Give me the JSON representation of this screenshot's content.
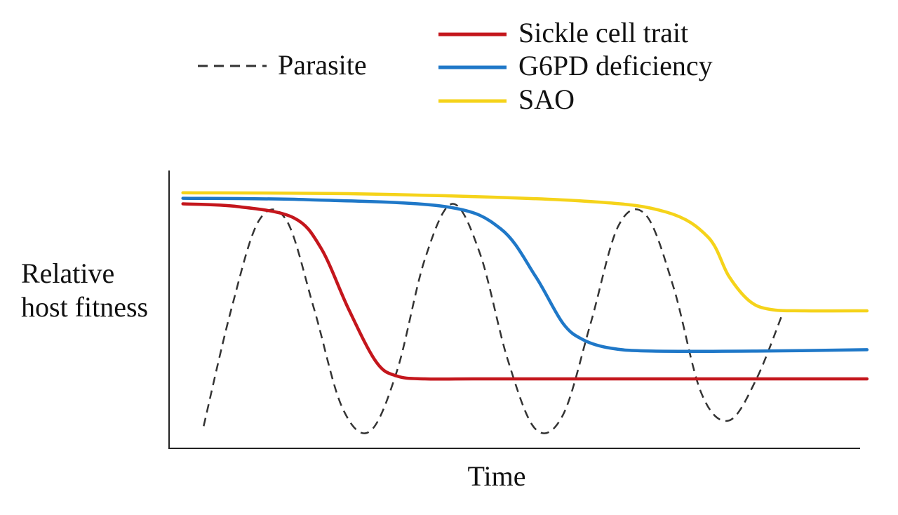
{
  "chart_data": {
    "type": "line",
    "title": "",
    "xlabel": "Time",
    "ylabel": [
      "Relative",
      "host fitness"
    ],
    "xlim": [
      0,
      100
    ],
    "ylim": [
      0,
      100
    ],
    "legend_position": "top",
    "legend": {
      "parasite": "Parasite",
      "sickle": "Sickle cell trait",
      "g6pd": "G6PD deficiency",
      "sao": "SAO"
    },
    "series": [
      {
        "key": "sickle",
        "name": "Sickle cell trait",
        "color": "#c4161c",
        "style": "solid",
        "x": [
          2,
          10,
          18,
          22,
          26,
          30,
          33,
          37,
          44,
          60,
          80,
          101
        ],
        "y": [
          88,
          87,
          83,
          72,
          50,
          31,
          26,
          25,
          25,
          25,
          25,
          25
        ]
      },
      {
        "key": "g6pd",
        "name": "G6PD deficiency",
        "color": "#1f78c8",
        "style": "solid",
        "x": [
          2,
          20,
          40,
          48,
          53,
          57,
          60,
          64,
          70,
          85,
          101
        ],
        "y": [
          90,
          89.5,
          87,
          79,
          62,
          45,
          39,
          36,
          35,
          35,
          35.5
        ]
      },
      {
        "key": "sao",
        "name": "SAO",
        "color": "#f5d31a",
        "style": "solid",
        "x": [
          2,
          30,
          60,
          72,
          78,
          81,
          84,
          87,
          92,
          101
        ],
        "y": [
          92,
          91.5,
          89,
          85,
          76,
          62,
          53,
          50,
          49.5,
          49.5
        ]
      },
      {
        "key": "parasite",
        "name": "Parasite",
        "color": "#333333",
        "style": "dashed",
        "x": [
          5,
          9,
          13,
          17,
          21,
          25,
          29,
          33,
          37,
          41,
          45,
          49,
          53,
          57,
          61,
          65,
          69,
          73,
          77,
          81,
          85,
          89
        ],
        "y": [
          8,
          50,
          82,
          82,
          50,
          15,
          6,
          28,
          68,
          88,
          70,
          32,
          7,
          12,
          45,
          80,
          84,
          58,
          20,
          10,
          25,
          50
        ]
      }
    ]
  }
}
